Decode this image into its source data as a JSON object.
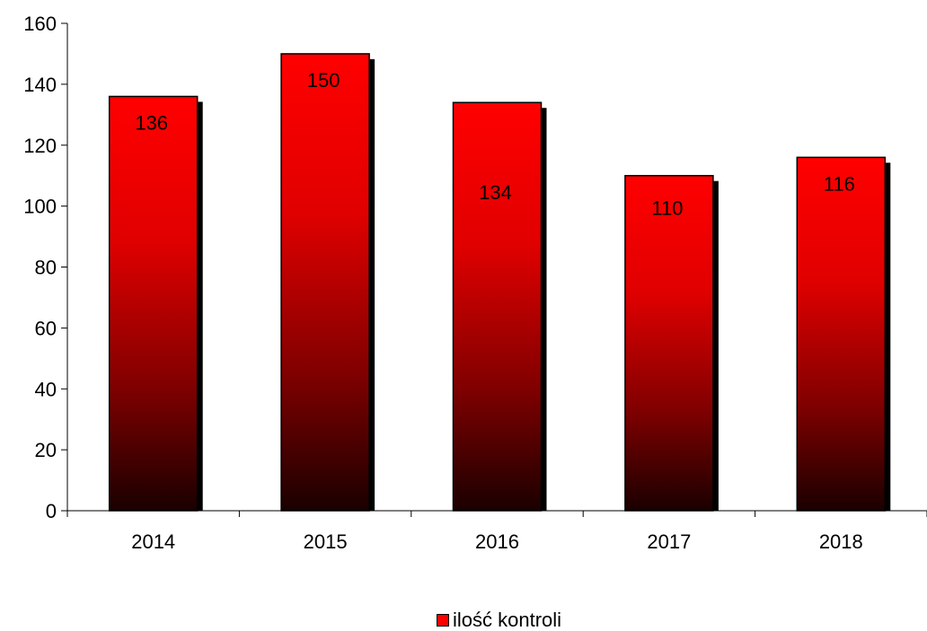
{
  "chart_data": {
    "type": "bar",
    "categories": [
      "2014",
      "2015",
      "2016",
      "2017",
      "2018"
    ],
    "series": [
      {
        "name": "ilość kontroli",
        "values": [
          136,
          150,
          134,
          110,
          116
        ]
      }
    ],
    "y_ticks": [
      "0",
      "20",
      "40",
      "60",
      "80",
      "100",
      "120",
      "140",
      "160"
    ],
    "ylim": [
      0,
      160
    ],
    "data_labels": [
      "136",
      "150",
      "134",
      "110",
      "116"
    ],
    "legend_position": "bottom",
    "grid": false,
    "colors": {
      "bar_top": "#ff0000",
      "bar_bottom": "#1a0000",
      "shadow": "#000000"
    }
  }
}
